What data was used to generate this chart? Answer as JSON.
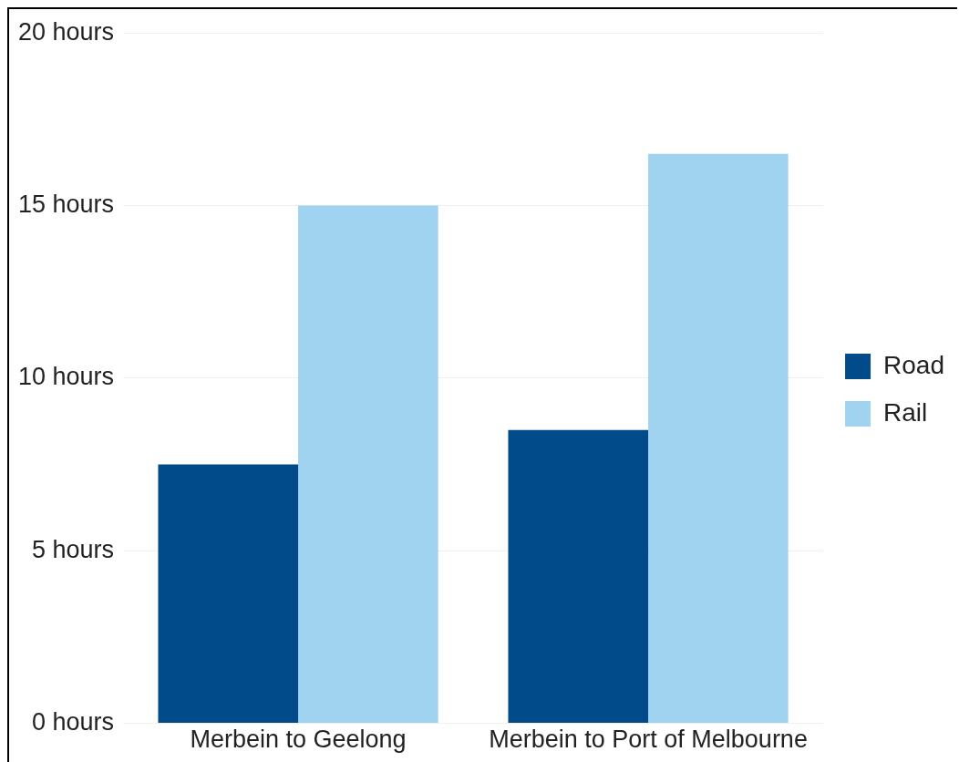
{
  "chart_data": {
    "type": "bar",
    "categories": [
      "Merbein to Geelong",
      "Merbein to Port of Melbourne"
    ],
    "series": [
      {
        "name": "Road",
        "color": "#024b8a",
        "values": [
          7.5,
          8.5
        ]
      },
      {
        "name": "Rail",
        "color": "#9fd3ef",
        "values": [
          15,
          16.5
        ]
      }
    ],
    "ylim": [
      0,
      20
    ],
    "yticks": [
      {
        "value": 0,
        "label": "0 hours"
      },
      {
        "value": 5,
        "label": "5 hours"
      },
      {
        "value": 10,
        "label": "10 hours"
      },
      {
        "value": 15,
        "label": "15 hours"
      },
      {
        "value": 20,
        "label": "20 hours"
      }
    ],
    "grid": "y",
    "legend": "right"
  }
}
